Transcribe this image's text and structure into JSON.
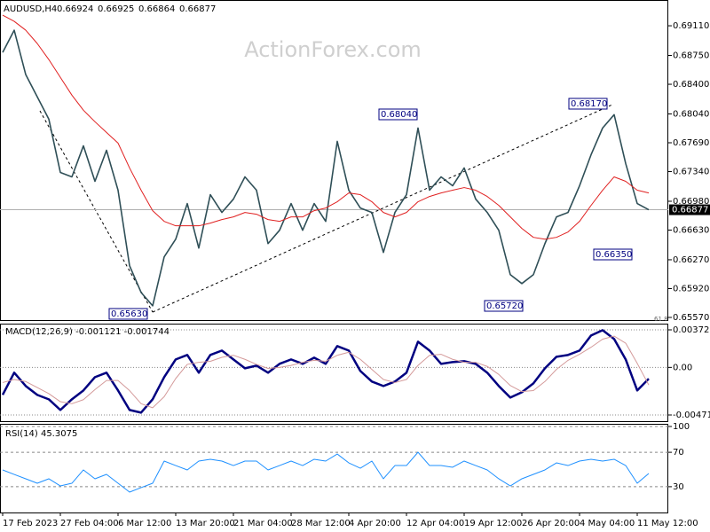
{
  "header": {
    "symbol": "AUDUSD,H4",
    "ohlc": [
      "0.66924",
      "0.66925",
      "0.66864",
      "0.66877"
    ],
    "watermark": "ActionForex.com"
  },
  "chart_data": [
    {
      "type": "line",
      "categories": [
        "17 Feb 2023",
        null,
        null,
        null,
        null,
        "27 Feb 04:00",
        null,
        null,
        null,
        null,
        "6 Mar 12:00",
        null,
        null,
        null,
        null,
        "13 Mar 20:00",
        null,
        null,
        null,
        null,
        "21 Mar 04:00",
        null,
        null,
        null,
        null,
        "28 Mar 12:00",
        null,
        null,
        null,
        null,
        "4 Apr 20:00",
        null,
        null,
        null,
        null,
        "12 Apr 04:00",
        null,
        null,
        null,
        null,
        "19 Apr 12:00",
        null,
        null,
        null,
        null,
        "26 Apr 20:00",
        null,
        null,
        null,
        null,
        "4 May 04:00",
        null,
        null,
        null,
        null,
        "11 May 12:00",
        null
      ],
      "series": [
        {
          "color": "#2f4f57",
          "values": [
            0.68786,
            0.69056,
            0.68517,
            0.68247,
            0.67977,
            0.6733,
            0.67276,
            0.67653,
            0.67222,
            0.67599,
            0.67114,
            0.66197,
            0.65873,
            0.65711,
            0.66305,
            0.6652,
            0.66952,
            0.66412,
            0.6706,
            0.66844,
            0.67006,
            0.67276,
            0.67114,
            0.66466,
            0.66628,
            0.66952,
            0.66628,
            0.66952,
            0.66736,
            0.67707,
            0.67114,
            0.66898,
            0.66844,
            0.66359,
            0.66844,
            0.6706,
            0.67869,
            0.67114,
            0.67276,
            0.67168,
            0.67384,
            0.67006,
            0.66844,
            0.66628,
            0.66089,
            0.65981,
            0.66089,
            0.66466,
            0.6679,
            0.66844,
            0.67168,
            0.67545,
            0.67869,
            0.68031,
            0.67438,
            0.66952,
            0.66877
          ]
        },
        {
          "color": "#e02020",
          "values": [
            0.69239,
            0.69164,
            0.69056,
            0.68894,
            0.687,
            0.68484,
            0.68268,
            0.68085,
            0.67945,
            0.67815,
            0.67686,
            0.67384,
            0.67114,
            0.66866,
            0.66736,
            0.66682,
            0.66682,
            0.66682,
            0.66715,
            0.66758,
            0.6679,
            0.66844,
            0.66823,
            0.66758,
            0.66736,
            0.6679,
            0.6679,
            0.66866,
            0.66898,
            0.66974,
            0.67081,
            0.6706,
            0.66974,
            0.66844,
            0.6679,
            0.66844,
            0.66974,
            0.67038,
            0.67081,
            0.67114,
            0.67146,
            0.67114,
            0.67038,
            0.6693,
            0.6679,
            0.6665,
            0.66542,
            0.6652,
            0.66542,
            0.66607,
            0.66736,
            0.6693,
            0.67114,
            0.67276,
            0.67222,
            0.67114,
            0.67081
          ]
        }
      ],
      "ylim": [
        0.65527,
        0.69412
      ],
      "yticks": [
        {
          "value": 0.6911,
          "label": "0.69110"
        },
        {
          "value": 0.6875,
          "label": "0.68750"
        },
        {
          "value": 0.684,
          "label": "0.68400"
        },
        {
          "value": 0.6804,
          "label": "0.68040"
        },
        {
          "value": 0.6769,
          "label": "0.67690"
        },
        {
          "value": 0.6734,
          "label": "0.67340"
        },
        {
          "value": 0.6698,
          "label": "0.66980"
        },
        {
          "value": 0.6663,
          "label": "0.66630"
        },
        {
          "value": 0.6627,
          "label": "0.66270"
        },
        {
          "value": 0.6592,
          "label": "0.65920"
        },
        {
          "value": 0.6557,
          "label": "0.65570"
        }
      ],
      "grid": false,
      "last_price": {
        "value": 0.66877,
        "label": "0.66877"
      },
      "annotations": [
        "0.65630",
        "0.68040",
        "0.68170",
        "0.65720",
        "0.66350",
        "61.8"
      ]
    },
    {
      "type": "line",
      "title": "MACD(12,26,9) -0.001121 -0.001744",
      "series": [
        {
          "color": "#000080",
          "values": [
            -0.002725,
            -0.000527,
            -0.001846,
            -0.002725,
            -0.003164,
            -0.004219,
            -0.003164,
            -0.002285,
            -0.000967,
            -0.000527,
            -0.002285,
            -0.004219,
            -0.004483,
            -0.003164,
            -0.000967,
            0.000791,
            0.001231,
            -0.000527,
            0.001231,
            0.00167,
            0.000791,
            -8.8e-05,
            0.000176,
            -0.000527,
            0.000352,
            0.000791,
            0.000352,
            0.000967,
            0.000352,
            0.00211,
            0.00167,
            -0.000352,
            -0.001406,
            -0.001846,
            -0.001406,
            -0.000527,
            0.002549,
            0.00167,
            0.000352,
            0.000527,
            0.000615,
            0.000352,
            -0.000527,
            -0.001846,
            -0.002989,
            -0.002461,
            -0.001582,
            -8.8e-05,
            0.001055,
            0.001231,
            0.00167,
            0.003164,
            0.003692,
            0.002813,
            0.000791,
            -0.002285,
            -0.001121
          ]
        },
        {
          "color": "#d49a9a",
          "values": [
            -0.0015,
            -0.0012,
            -0.0014,
            -0.002,
            -0.0026,
            -0.0034,
            -0.0036,
            -0.0032,
            -0.0022,
            -0.0013,
            -0.0013,
            -0.0023,
            -0.0036,
            -0.004,
            -0.0029,
            -0.0011,
            0.0003,
            0.0005,
            0.0006,
            0.001,
            0.0012,
            0.0008,
            0.0003,
            -0.0001,
            0,
            0.0002,
            0.0005,
            0.0007,
            0.0006,
            0.0012,
            0.0015,
            0.0008,
            -0.0002,
            -0.0012,
            -0.0015,
            -0.0012,
            0.0002,
            0.0012,
            0.0013,
            0.0008,
            0.0005,
            0.0005,
            0.0001,
            -0.0007,
            -0.0018,
            -0.0024,
            -0.0023,
            -0.0014,
            -0.0002,
            0.0007,
            0.0013,
            0.002,
            0.0028,
            0.0031,
            0.0024,
            0.0004,
            -0.001744
          ]
        }
      ],
      "ylim": [
        -0.00533,
        0.00425
      ],
      "yticks": [
        0.003722,
        {
          "value": 0,
          "label": "0.00"
        },
        -0.004716
      ],
      "grid": true
    },
    {
      "type": "line",
      "title": "RSI(14) 45.3075",
      "series": [
        {
          "color": "#1e90ff",
          "values": [
            49.5,
            44.3,
            39.2,
            34.0,
            39.2,
            30.9,
            34.0,
            49.5,
            39.2,
            44.3,
            34.0,
            23.7,
            28.9,
            34.0,
            59.8,
            54.6,
            49.5,
            59.8,
            61.9,
            59.8,
            54.6,
            59.8,
            59.8,
            49.5,
            54.6,
            59.8,
            54.6,
            61.9,
            59.8,
            68.0,
            57.7,
            51.5,
            59.8,
            39.2,
            54.6,
            54.6,
            70.1,
            54.6,
            54.6,
            52.6,
            59.8,
            54.6,
            49.5,
            39.2,
            30.9,
            39.2,
            44.3,
            49.5,
            57.7,
            54.6,
            59.8,
            61.9,
            59.8,
            61.9,
            54.6,
            34.0,
            45.3075
          ]
        }
      ],
      "ylim": [
        0,
        100
      ],
      "yticks": [
        100,
        70,
        30
      ],
      "grid": true
    }
  ]
}
